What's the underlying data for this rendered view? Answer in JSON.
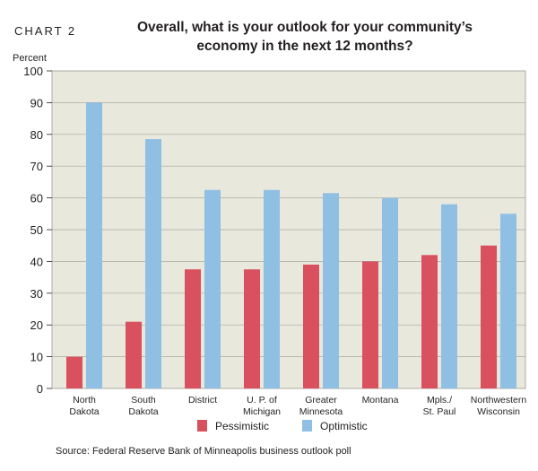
{
  "figure": {
    "label": "CHART 2",
    "title": "Overall, what is your outlook for your community’s economy in the next 12 months?",
    "source": "Source: Federal Reserve Bank of Minneapolis business outlook poll"
  },
  "chart_data": {
    "type": "bar",
    "title": "Overall, what is your outlook for your community’s economy in the next 12 months?",
    "xlabel": "",
    "ylabel": "Percent",
    "ylim": [
      0,
      100
    ],
    "yticks": [
      0,
      10,
      20,
      30,
      40,
      50,
      60,
      70,
      80,
      90,
      100
    ],
    "grid": true,
    "legend_position": "bottom",
    "categories": [
      [
        "North",
        "Dakota"
      ],
      [
        "South",
        "Dakota"
      ],
      [
        "District"
      ],
      [
        "U. P. of",
        "Michigan"
      ],
      [
        "Greater",
        "Minnesota"
      ],
      [
        "Montana"
      ],
      [
        "Mpls./",
        "St. Paul"
      ],
      [
        "Northwestern",
        "Wisconsin"
      ]
    ],
    "series": [
      {
        "name": "Pessimistic",
        "color": "#d9505e",
        "values": [
          10,
          21,
          37.5,
          37.5,
          39,
          40,
          42,
          45
        ]
      },
      {
        "name": "Optimistic",
        "color": "#8fbfe3",
        "values": [
          90,
          78.5,
          62.5,
          62.5,
          61.5,
          60,
          58,
          55
        ]
      }
    ],
    "plot_background": "#e9e8dd"
  }
}
